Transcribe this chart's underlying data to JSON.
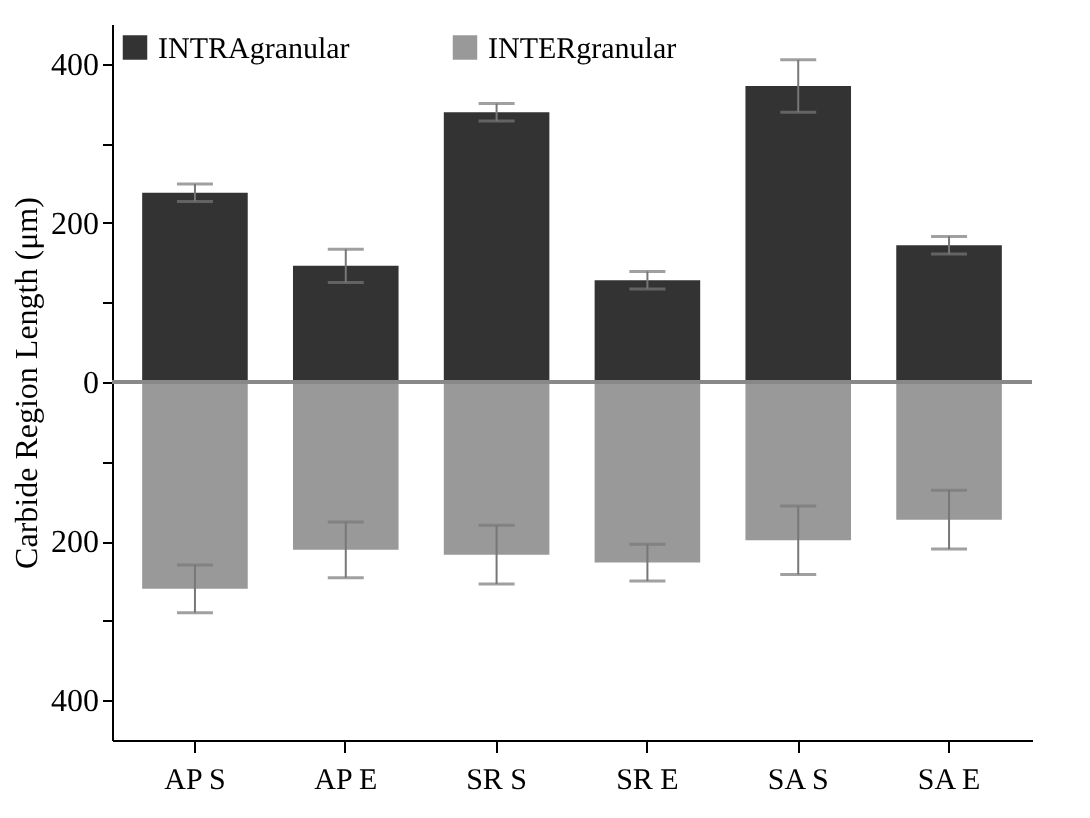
{
  "chart_data": {
    "type": "bar",
    "ylabel": "Carbide Region Length (μm)",
    "categories": [
      "AP S",
      "AP E",
      "SR S",
      "SR E",
      "SA S",
      "SA E"
    ],
    "stacked": true,
    "series": [
      {
        "name": "INTRAgranular",
        "color": "#333333",
        "values": [
          238,
          146,
          339,
          128,
          372,
          172
        ],
        "errors": [
          11,
          21,
          11,
          11,
          33,
          11
        ]
      },
      {
        "name": "INTERgranular",
        "color": "#999999",
        "values": [
          -260,
          -211,
          -217,
          -227,
          -199,
          -173
        ],
        "errors": [
          30,
          35,
          37,
          23,
          43,
          37
        ]
      }
    ],
    "ylim": [
      -450,
      450
    ],
    "yticks": [
      {
        "value": -400,
        "label": "400"
      },
      {
        "value": -300,
        "label": null
      },
      {
        "value": -200,
        "label": "200"
      },
      {
        "value": -100,
        "label": null
      },
      0,
      {
        "value": 100,
        "label": null
      },
      200,
      {
        "value": 300,
        "label": null
      },
      400
    ],
    "ref_lines": [
      {
        "axis": "y",
        "value": 0,
        "color": "#888888"
      }
    ],
    "legend": "top left",
    "grid": false
  }
}
